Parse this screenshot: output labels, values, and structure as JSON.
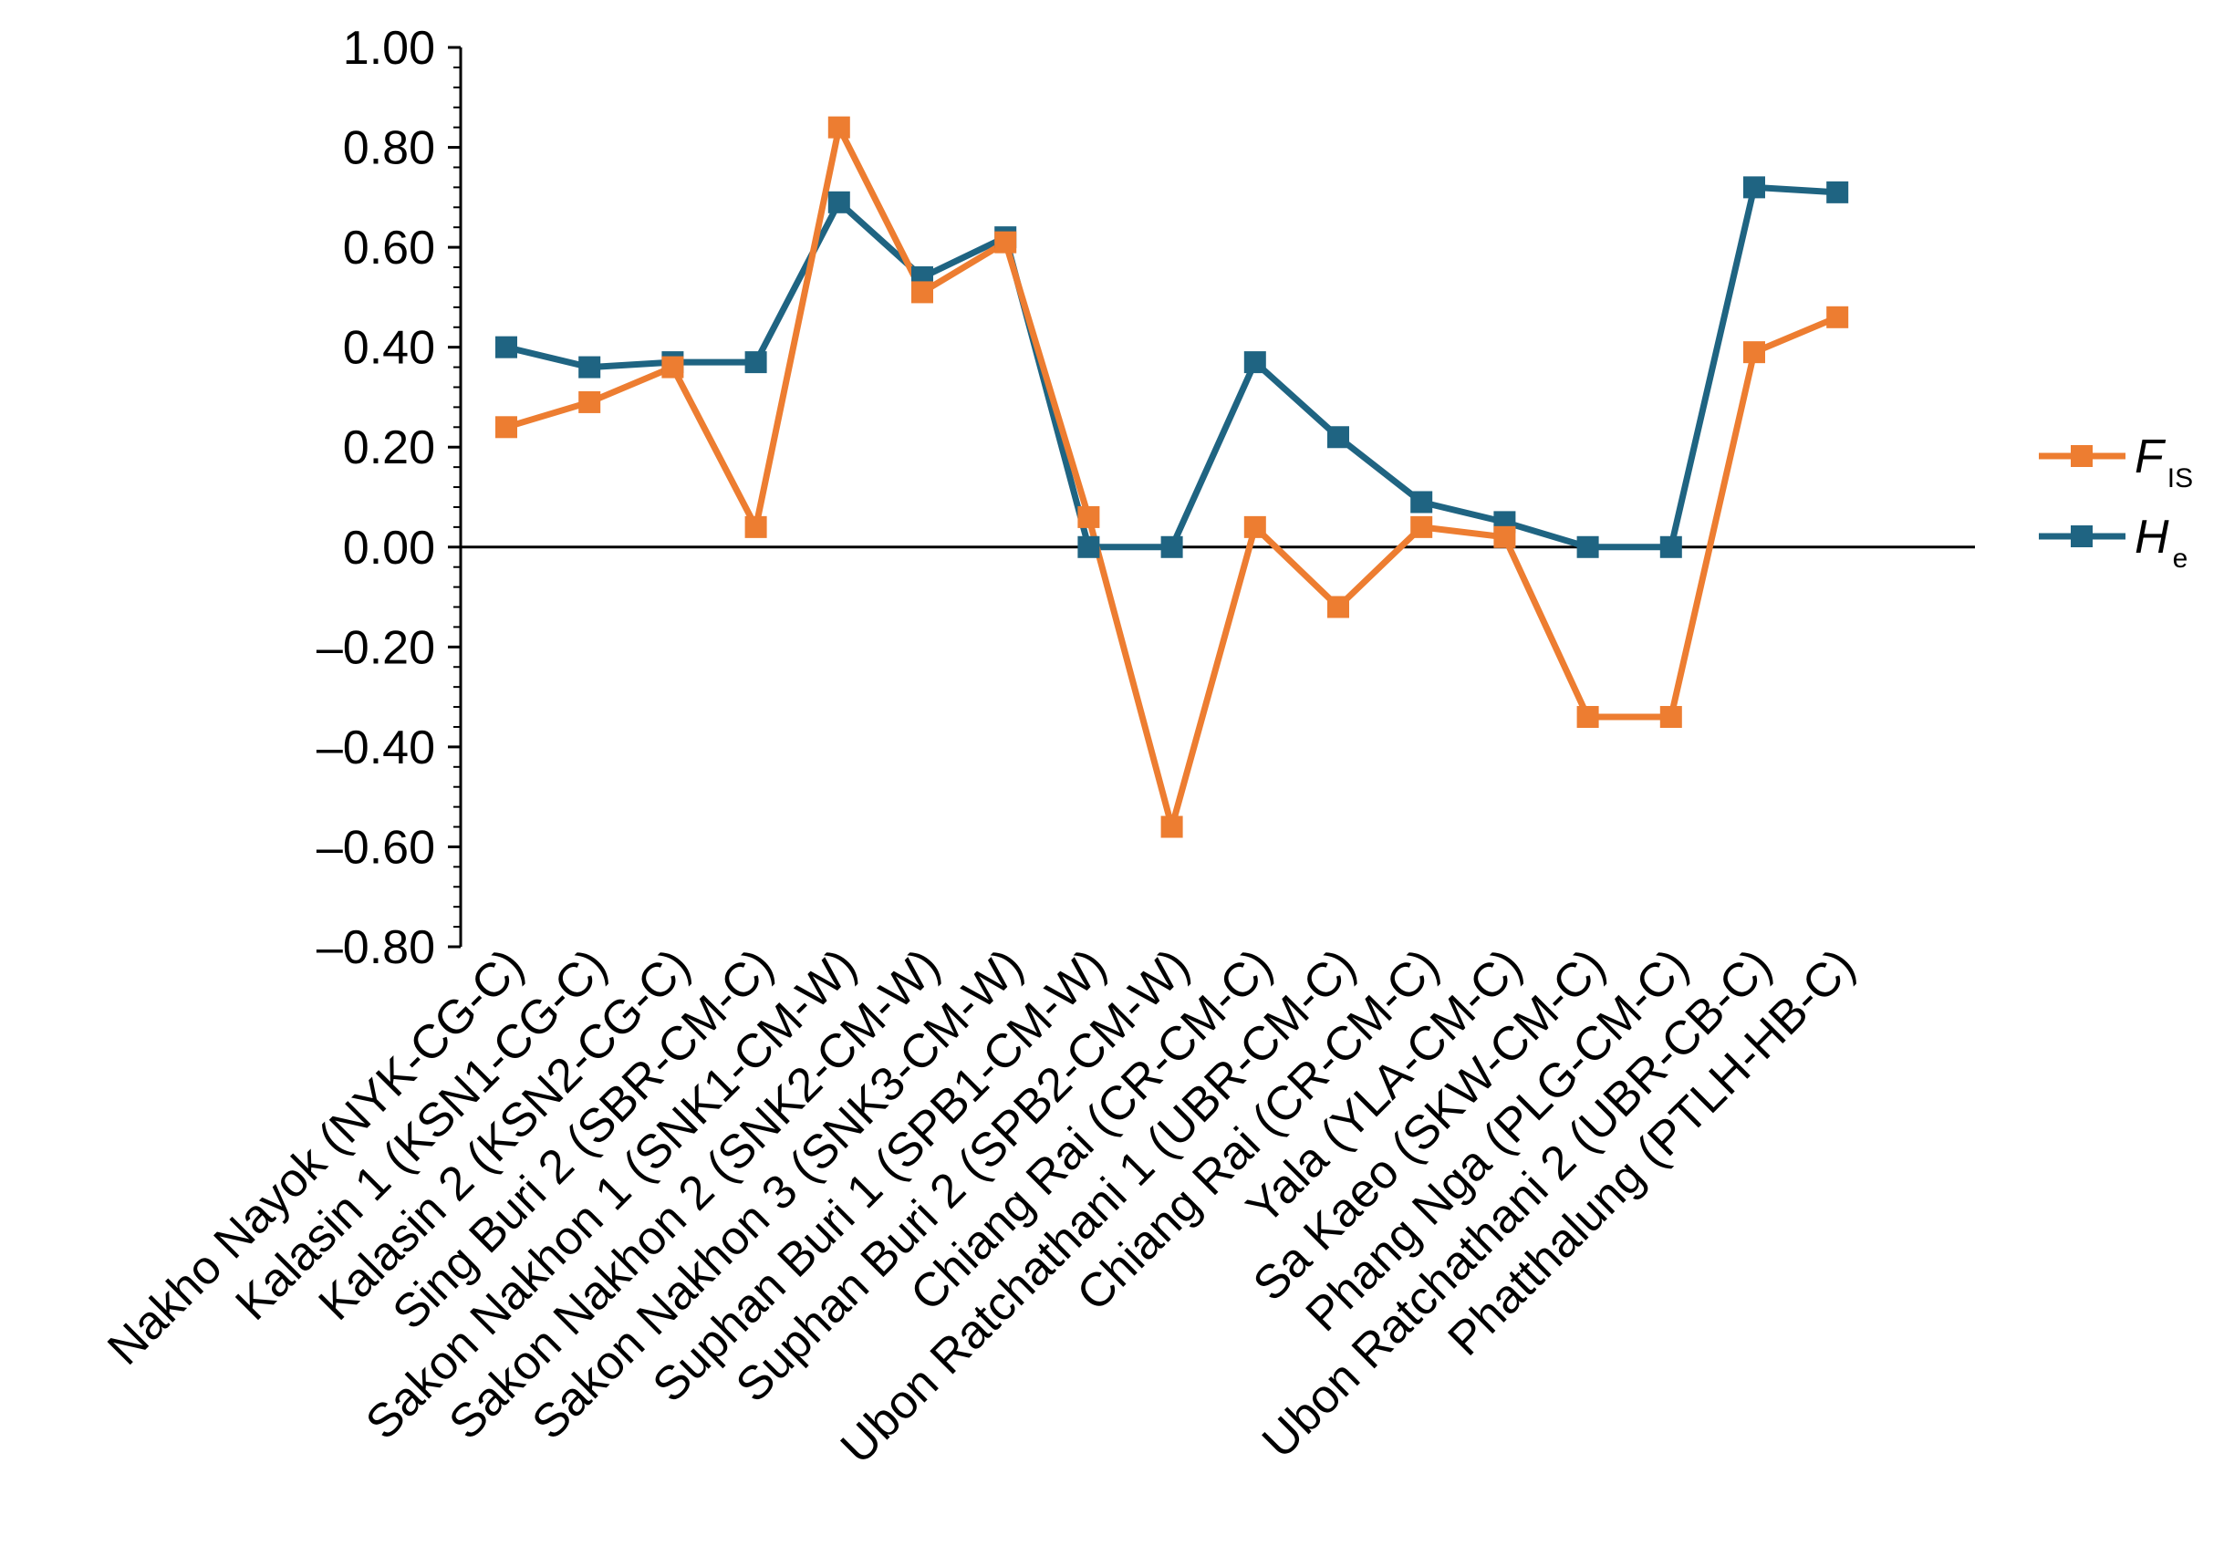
{
  "chart_data": {
    "type": "line",
    "categories": [
      "Nakho Nayok (NYK-CG-C)",
      "Kalasin 1 (KSN1-CG-C)",
      "Kalasin 2 (KSN2-CG-C)",
      "Sing Buri 2 (SBR-CM-C)",
      "Sakon Nakhon 1 (SNK1-CM-W)",
      "Sakon Nakhon 2 (SNK2-CM-W)",
      "Sakon Nakhon 3 (SNK3-CM-W)",
      "Suphan Buri 1 (SPB1-CM-W)",
      "Suphan Buri 2 (SPB2-CM-W)",
      "Chiang Rai (CR-CM-C)",
      "Ubon Ratchathani 1 (UBR-CM-C)",
      "Chiang Rai (CR-CM-C)",
      "Yala (YLA-CM-C)",
      "Sa Kaeo (SKW-CM-C)",
      "Phang Nga (PLG-CM-C)",
      "Ubon Ratchathani 2 (UBR-CB-C)",
      "Phatthalung (PTLH-HB-C)"
    ],
    "series": [
      {
        "name": "F_IS",
        "label_main": "F",
        "label_sub": "IS",
        "color": "#ED7D31",
        "values": [
          0.24,
          0.29,
          0.36,
          0.04,
          0.84,
          0.51,
          0.61,
          0.06,
          -0.56,
          0.04,
          -0.12,
          0.04,
          0.02,
          -0.34,
          -0.34,
          0.39,
          0.46
        ]
      },
      {
        "name": "H_e",
        "label_main": "H",
        "label_sub": "e",
        "color": "#1F6482",
        "values": [
          0.4,
          0.36,
          0.37,
          0.37,
          0.69,
          0.54,
          0.62,
          0.0,
          0.0,
          0.37,
          0.22,
          0.09,
          0.05,
          0.0,
          0.0,
          0.72,
          0.71
        ]
      }
    ],
    "ylim": [
      -0.8,
      1.0
    ],
    "yticks": [
      "1.00",
      "0.80",
      "0.60",
      "0.40",
      "0.20",
      "0.00",
      "–0.20",
      "–0.40",
      "–0.60",
      "–0.80"
    ],
    "ytick_values": [
      1.0,
      0.8,
      0.6,
      0.4,
      0.2,
      0.0,
      -0.2,
      -0.4,
      -0.6,
      -0.8
    ],
    "title": "",
    "xlabel": "",
    "ylabel": "",
    "grid": false,
    "legend_position": "right"
  }
}
